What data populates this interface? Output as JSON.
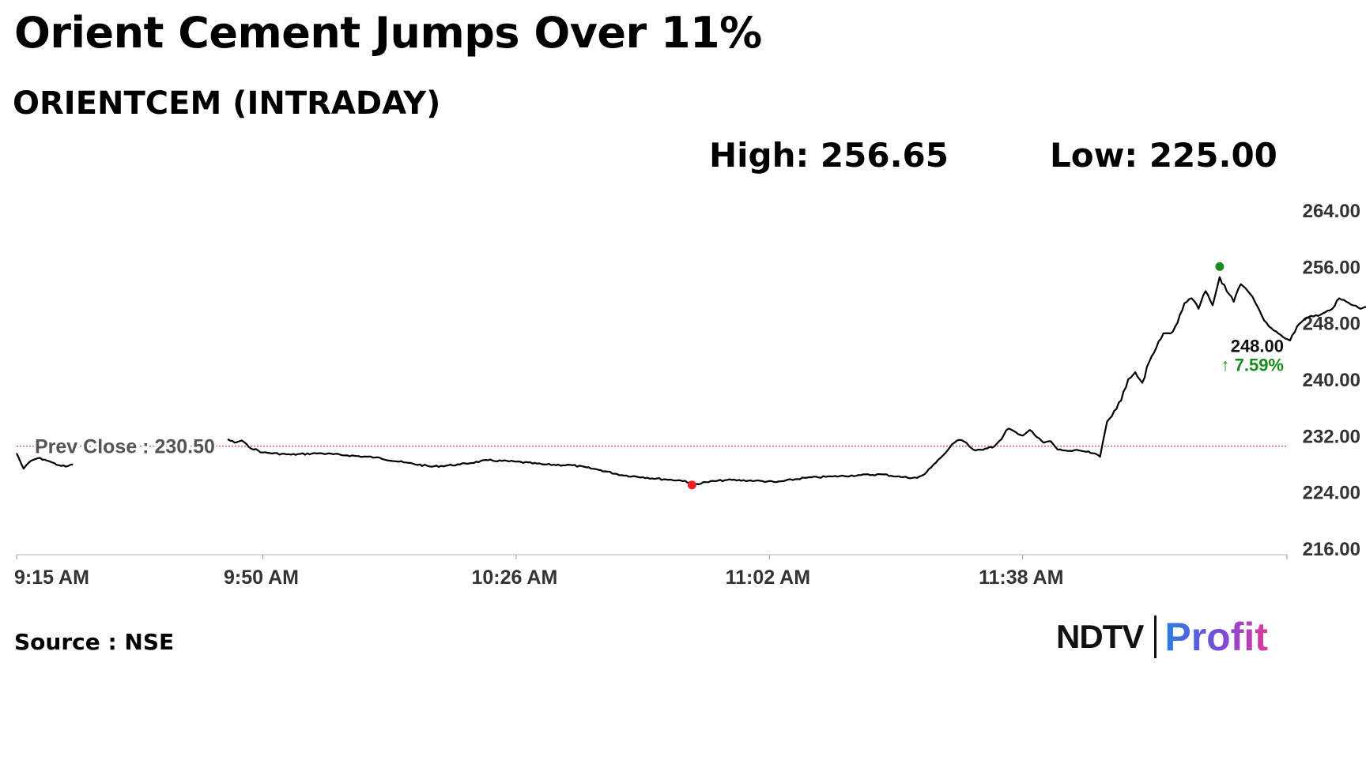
{
  "header": {
    "title": "Orient Cement Jumps Over 11%",
    "subtitle": "ORIENTCEM (INTRADAY)",
    "high": "High: 256.65",
    "low": "Low: 225.00"
  },
  "footer": {
    "source": "Source : NSE",
    "logo_ndtv": "NDTV",
    "logo_profit": "Profit"
  },
  "colors": {
    "line": "#000000",
    "ref_line": "#cc3333",
    "high_marker": "#1a8a1a",
    "low_marker": "#ee2222",
    "last_marker": "#1a1aaa",
    "change": "#1a8a1a"
  },
  "chart_data": {
    "type": "line",
    "title": "ORIENTCEM (INTRADAY)",
    "xlabel": "",
    "ylabel": "",
    "x_tick_labels": [
      "9:15 AM",
      "9:50 AM",
      "10:26 AM",
      "11:02 AM",
      "11:38 AM"
    ],
    "y_ticks": [
      "264.00",
      "256.00",
      "248.00",
      "240.00",
      "232.00",
      "224.00",
      "216.00"
    ],
    "ylim": [
      216,
      264
    ],
    "grid": false,
    "reference_line": {
      "label": "Prev Close : 230.50",
      "value": 230.5
    },
    "last_value_label": "248.00",
    "change_label": "↑ 7.59%",
    "series": [
      {
        "values": [
          {
            "t": "9:15",
            "y": 229.5
          },
          {
            "t": "9:16",
            "y": 227.3
          },
          {
            "t": "9:17",
            "y": 228.4
          },
          {
            "t": "9:18",
            "y": 228.8
          },
          {
            "t": "9:19",
            "y": 228.6
          },
          {
            "t": "9:20",
            "y": 228.2
          },
          {
            "t": "9:21",
            "y": 227.8
          },
          {
            "t": "9:22",
            "y": 227.6
          },
          {
            "t": "9:23",
            "y": 227.9
          },
          {
            "t": "9:45",
            "y": 231.5
          },
          {
            "t": "9:46",
            "y": 231.0
          },
          {
            "t": "9:47",
            "y": 231.3
          },
          {
            "t": "9:48",
            "y": 230.4
          },
          {
            "t": "9:50",
            "y": 229.6
          },
          {
            "t": "9:54",
            "y": 229.3
          },
          {
            "t": "9:58",
            "y": 229.5
          },
          {
            "t": "10:02",
            "y": 229.2
          },
          {
            "t": "10:06",
            "y": 228.9
          },
          {
            "t": "10:10",
            "y": 228.2
          },
          {
            "t": "10:14",
            "y": 227.6
          },
          {
            "t": "10:18",
            "y": 227.9
          },
          {
            "t": "10:22",
            "y": 228.5
          },
          {
            "t": "10:26",
            "y": 228.3
          },
          {
            "t": "10:30",
            "y": 227.9
          },
          {
            "t": "10:34",
            "y": 227.8
          },
          {
            "t": "10:38",
            "y": 227.1
          },
          {
            "t": "10:41",
            "y": 226.4
          },
          {
            "t": "10:44",
            "y": 226.1
          },
          {
            "t": "10:47",
            "y": 225.8
          },
          {
            "t": "10:50",
            "y": 225.6
          },
          {
            "t": "10:51",
            "y": 225.0
          },
          {
            "t": "10:53",
            "y": 225.4
          },
          {
            "t": "10:56",
            "y": 225.7
          },
          {
            "t": "11:00",
            "y": 225.6
          },
          {
            "t": "11:03",
            "y": 225.4
          },
          {
            "t": "11:07",
            "y": 226.0
          },
          {
            "t": "11:11",
            "y": 226.2
          },
          {
            "t": "11:15",
            "y": 226.4
          },
          {
            "t": "11:18",
            "y": 226.5
          },
          {
            "t": "11:21",
            "y": 226.1
          },
          {
            "t": "11:23",
            "y": 226.0
          },
          {
            "t": "11:24",
            "y": 226.5
          },
          {
            "t": "11:25",
            "y": 227.5
          },
          {
            "t": "11:26",
            "y": 228.6
          },
          {
            "t": "11:27",
            "y": 229.5
          },
          {
            "t": "11:28",
            "y": 230.8
          },
          {
            "t": "11:29",
            "y": 231.4
          },
          {
            "t": "11:30",
            "y": 231.0
          },
          {
            "t": "11:31",
            "y": 230.0
          },
          {
            "t": "11:32",
            "y": 230.0
          },
          {
            "t": "11:33",
            "y": 230.2
          },
          {
            "t": "11:34",
            "y": 230.5
          },
          {
            "t": "11:35",
            "y": 231.5
          },
          {
            "t": "11:36",
            "y": 233.0
          },
          {
            "t": "11:37",
            "y": 232.5
          },
          {
            "t": "11:38",
            "y": 232.0
          },
          {
            "t": "11:39",
            "y": 232.8
          },
          {
            "t": "11:40",
            "y": 231.8
          },
          {
            "t": "11:41",
            "y": 231.0
          },
          {
            "t": "11:42",
            "y": 231.2
          },
          {
            "t": "11:43",
            "y": 230.0
          },
          {
            "t": "11:44",
            "y": 229.9
          },
          {
            "t": "11:45",
            "y": 229.8
          },
          {
            "t": "11:46",
            "y": 229.9
          },
          {
            "t": "11:47",
            "y": 229.7
          },
          {
            "t": "11:48",
            "y": 229.5
          },
          {
            "t": "11:49",
            "y": 229.0
          },
          {
            "t": "11:50",
            "y": 234.0
          },
          {
            "t": "11:51",
            "y": 235.5
          },
          {
            "t": "11:52",
            "y": 237.0
          },
          {
            "t": "11:53",
            "y": 240.0
          },
          {
            "t": "11:54",
            "y": 241.0
          },
          {
            "t": "11:55",
            "y": 239.5
          },
          {
            "t": "11:56",
            "y": 242.5
          },
          {
            "t": "11:57",
            "y": 244.5
          },
          {
            "t": "11:58",
            "y": 246.5
          },
          {
            "t": "11:59",
            "y": 246.5
          },
          {
            "t": "12:00",
            "y": 248.0
          },
          {
            "t": "12:01",
            "y": 250.8
          },
          {
            "t": "12:02",
            "y": 251.5
          },
          {
            "t": "12:03",
            "y": 250.0
          },
          {
            "t": "12:04",
            "y": 252.5
          },
          {
            "t": "12:05",
            "y": 250.5
          },
          {
            "t": "12:06",
            "y": 254.5
          },
          {
            "t": "12:07",
            "y": 252.5
          },
          {
            "t": "12:08",
            "y": 251.0
          },
          {
            "t": "12:09",
            "y": 253.5
          },
          {
            "t": "12:10",
            "y": 252.5
          },
          {
            "t": "12:11",
            "y": 251.0
          },
          {
            "t": "12:12",
            "y": 249.0
          },
          {
            "t": "12:13",
            "y": 247.5
          },
          {
            "t": "12:14",
            "y": 246.8
          },
          {
            "t": "12:15",
            "y": 246.0
          },
          {
            "t": "12:16",
            "y": 245.5
          },
          {
            "t": "12:17",
            "y": 247.5
          },
          {
            "t": "12:18",
            "y": 248.5
          },
          {
            "t": "12:19",
            "y": 249.0
          },
          {
            "t": "12:20",
            "y": 249.0
          },
          {
            "t": "12:21",
            "y": 249.5
          },
          {
            "t": "12:22",
            "y": 250.0
          },
          {
            "t": "12:23",
            "y": 251.5
          },
          {
            "t": "12:24",
            "y": 251.0
          },
          {
            "t": "12:25",
            "y": 250.5
          },
          {
            "t": "12:26",
            "y": 250.0
          },
          {
            "t": "12:27",
            "y": 250.2
          },
          {
            "t": "12:28",
            "y": 250.0
          },
          {
            "t": "12:29",
            "y": 249.8
          },
          {
            "t": "12:30",
            "y": 249.5
          },
          {
            "t": "12:31",
            "y": 249.0
          },
          {
            "t": "12:32",
            "y": 248.0
          }
        ]
      }
    ],
    "markers": [
      {
        "label": "high",
        "t": "12:06",
        "y": 256.0
      },
      {
        "label": "low",
        "t": "10:51",
        "y": 225.0
      },
      {
        "label": "last",
        "t": "12:32",
        "y": 248.0
      }
    ]
  }
}
